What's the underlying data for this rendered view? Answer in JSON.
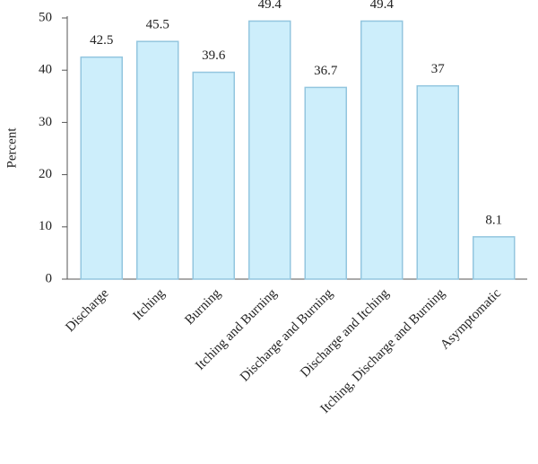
{
  "chart_data": {
    "type": "bar",
    "y_label": "Percent",
    "categories": [
      "Discharge",
      "Itching",
      "Burning",
      "Itching and Burning",
      "Discharge and Burning",
      "Discharge and Itching",
      "Itching, Discharge and Burning",
      "Asymptomatic"
    ],
    "values": [
      42.5,
      45.5,
      39.6,
      49.4,
      36.7,
      49.4,
      37,
      8.1
    ],
    "color": "#cdeefb",
    "edge_color": "#93c6df",
    "ylim": [
      0,
      50
    ],
    "yticks": [
      0,
      10,
      20,
      30,
      40,
      50
    ],
    "grid": false
  }
}
